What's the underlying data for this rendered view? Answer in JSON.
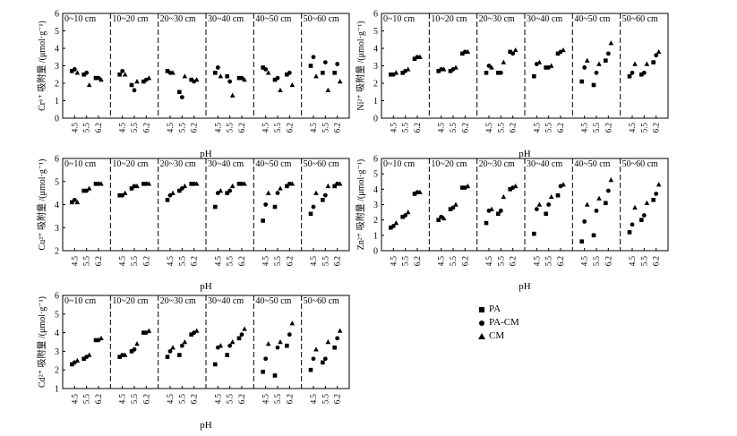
{
  "chart_data": [
    {
      "type": "scatter",
      "ylabel": "Cr⁶⁺ 吸附量 /(μmol·g⁻¹)",
      "xlabel": "pH",
      "ylim": [
        0,
        6
      ],
      "yticks": [
        "0",
        "1",
        "2",
        "3",
        "4",
        "5",
        "6"
      ],
      "x_ticks": [
        "4.5",
        "5.5",
        "6.2"
      ],
      "depths": [
        "0~10 cm",
        "10~20 cm",
        "20~30 cm",
        "30~40 cm",
        "40~50 cm",
        "50~60 cm"
      ],
      "series": [
        {
          "name": "PA",
          "values": [
            [
              2.7,
              2.5,
              2.3
            ],
            [
              2.5,
              1.9,
              2.1
            ],
            [
              2.7,
              1.5,
              2.2
            ],
            [
              2.6,
              2.4,
              2.3
            ],
            [
              2.9,
              2.2,
              2.5
            ],
            [
              3.0,
              2.6,
              2.6
            ]
          ]
        },
        {
          "name": "PA-CM",
          "values": [
            [
              2.8,
              2.6,
              2.3
            ],
            [
              2.7,
              1.6,
              2.2
            ],
            [
              2.6,
              1.2,
              2.1
            ],
            [
              2.9,
              2.1,
              2.3
            ],
            [
              2.8,
              2.3,
              2.6
            ],
            [
              3.5,
              3.2,
              3.1
            ]
          ]
        },
        {
          "name": "CM",
          "values": [
            [
              2.6,
              1.9,
              2.2
            ],
            [
              2.5,
              2.1,
              2.3
            ],
            [
              2.6,
              2.4,
              2.2
            ],
            [
              2.4,
              1.3,
              2.2
            ],
            [
              2.6,
              1.6,
              1.9
            ],
            [
              2.4,
              1.6,
              2.1
            ]
          ]
        }
      ]
    },
    {
      "type": "scatter",
      "ylabel": "Ni²⁺ 吸附量 /(μmol·g⁻¹)",
      "xlabel": "pH",
      "ylim": [
        0,
        6
      ],
      "yticks": [
        "0",
        "1",
        "2",
        "3",
        "4",
        "5",
        "6"
      ],
      "x_ticks": [
        "4.5",
        "5.5",
        "6.2"
      ],
      "depths": [
        "0~10 cm",
        "10~20 cm",
        "20~30 cm",
        "30~40 cm",
        "40~50 cm",
        "50~60 cm"
      ],
      "series": [
        {
          "name": "PA",
          "values": [
            [
              2.5,
              2.6,
              3.4
            ],
            [
              2.7,
              2.7,
              3.7
            ],
            [
              2.6,
              2.6,
              3.8
            ],
            [
              2.4,
              2.9,
              3.7
            ],
            [
              2.1,
              1.9,
              3.3
            ],
            [
              2.4,
              2.5,
              3.2
            ]
          ]
        },
        {
          "name": "PA-CM",
          "values": [
            [
              2.5,
              2.7,
              3.5
            ],
            [
              2.8,
              2.8,
              3.8
            ],
            [
              3.0,
              2.6,
              3.7
            ],
            [
              3.1,
              2.9,
              3.8
            ],
            [
              2.9,
              2.6,
              3.7
            ],
            [
              2.6,
              2.6,
              3.6
            ]
          ]
        },
        {
          "name": "CM",
          "values": [
            [
              2.6,
              2.8,
              3.5
            ],
            [
              2.8,
              2.9,
              3.8
            ],
            [
              2.9,
              3.2,
              3.9
            ],
            [
              3.2,
              3.0,
              3.9
            ],
            [
              3.3,
              3.1,
              4.3
            ],
            [
              3.1,
              3.1,
              3.8
            ]
          ]
        }
      ]
    },
    {
      "type": "scatter",
      "ylabel": "Cu²⁺ 吸附量 /(μmol·g⁻¹)",
      "xlabel": "pH",
      "ylim": [
        2,
        6
      ],
      "yticks": [
        "2",
        "3",
        "4",
        "5",
        "6"
      ],
      "x_ticks": [
        "4.5",
        "5.5",
        "6.2"
      ],
      "depths": [
        "0~10 cm",
        "10~20 cm",
        "20~30 cm",
        "30~40 cm",
        "40~50 cm",
        "50~60 cm"
      ],
      "series": [
        {
          "name": "PA",
          "values": [
            [
              4.1,
              4.6,
              4.9
            ],
            [
              4.4,
              4.7,
              4.9
            ],
            [
              4.2,
              4.6,
              4.9
            ],
            [
              3.9,
              4.5,
              4.9
            ],
            [
              3.3,
              3.9,
              4.8
            ],
            [
              3.6,
              4.2,
              4.8
            ]
          ]
        },
        {
          "name": "PA-CM",
          "values": [
            [
              4.2,
              4.6,
              4.9
            ],
            [
              4.4,
              4.8,
              4.9
            ],
            [
              4.4,
              4.7,
              4.9
            ],
            [
              4.5,
              4.6,
              4.9
            ],
            [
              4.0,
              4.5,
              4.9
            ],
            [
              3.9,
              4.4,
              4.9
            ]
          ]
        },
        {
          "name": "CM",
          "values": [
            [
              4.1,
              4.7,
              4.9
            ],
            [
              4.5,
              4.8,
              4.9
            ],
            [
              4.5,
              4.8,
              4.9
            ],
            [
              4.6,
              4.8,
              4.9
            ],
            [
              4.5,
              4.7,
              4.9
            ],
            [
              4.5,
              4.8,
              4.9
            ]
          ]
        }
      ]
    },
    {
      "type": "scatter",
      "ylabel": "Zn²⁺ 吸附量 /(μmol·g⁻¹)",
      "xlabel": "pH",
      "ylim": [
        0,
        6
      ],
      "yticks": [
        "0",
        "1",
        "2",
        "3",
        "4",
        "5",
        "6"
      ],
      "x_ticks": [
        "4.5",
        "5.5",
        "6.2"
      ],
      "depths": [
        "0~10 cm",
        "10~20 cm",
        "20~30 cm",
        "30~40 cm",
        "40~50 cm",
        "50~60 cm"
      ],
      "series": [
        {
          "name": "PA",
          "values": [
            [
              1.5,
              2.2,
              3.7
            ],
            [
              2.0,
              2.7,
              4.1
            ],
            [
              1.8,
              2.4,
              4.0
            ],
            [
              1.1,
              2.4,
              3.6
            ],
            [
              0.6,
              1.0,
              3.1
            ],
            [
              1.2,
              2.0,
              3.3
            ]
          ]
        },
        {
          "name": "PA-CM",
          "values": [
            [
              1.6,
              2.3,
              3.8
            ],
            [
              2.2,
              2.8,
              4.1
            ],
            [
              2.6,
              2.6,
              4.1
            ],
            [
              2.7,
              3.0,
              4.2
            ],
            [
              1.9,
              2.6,
              3.9
            ],
            [
              1.7,
              2.3,
              3.7
            ]
          ]
        },
        {
          "name": "CM",
          "values": [
            [
              1.8,
              2.5,
              3.8
            ],
            [
              2.1,
              3.0,
              4.2
            ],
            [
              2.7,
              3.5,
              4.2
            ],
            [
              3.0,
              3.5,
              4.3
            ],
            [
              3.0,
              3.4,
              4.6
            ],
            [
              2.8,
              3.1,
              4.3
            ]
          ]
        }
      ]
    },
    {
      "type": "scatter",
      "ylabel": "Cd²⁺ 吸附量 /(μmol·g⁻¹)",
      "xlabel": "pH",
      "ylim": [
        1,
        6
      ],
      "yticks": [
        "1",
        "2",
        "3",
        "4",
        "5",
        "6"
      ],
      "x_ticks": [
        "4.5",
        "5.5",
        "6.2"
      ],
      "depths": [
        "0~10 cm",
        "10~20 cm",
        "20~30 cm",
        "30~40 cm",
        "40~50 cm",
        "50~60 cm"
      ],
      "series": [
        {
          "name": "PA",
          "values": [
            [
              2.3,
              2.6,
              3.6
            ],
            [
              2.7,
              3.0,
              4.0
            ],
            [
              2.7,
              2.8,
              3.9
            ],
            [
              2.3,
              2.8,
              3.7
            ],
            [
              1.9,
              1.7,
              3.3
            ],
            [
              2.0,
              2.4,
              3.2
            ]
          ]
        },
        {
          "name": "PA-CM",
          "values": [
            [
              2.4,
              2.7,
              3.6
            ],
            [
              2.8,
              3.1,
              4.0
            ],
            [
              3.0,
              3.3,
              4.0
            ],
            [
              3.2,
              3.3,
              3.9
            ],
            [
              2.6,
              3.2,
              3.9
            ],
            [
              2.6,
              2.6,
              3.7
            ]
          ]
        },
        {
          "name": "CM",
          "values": [
            [
              2.5,
              2.8,
              3.7
            ],
            [
              2.8,
              3.4,
              4.1
            ],
            [
              3.2,
              3.5,
              4.1
            ],
            [
              3.3,
              3.5,
              4.2
            ],
            [
              3.4,
              3.5,
              4.5
            ],
            [
              3.1,
              3.5,
              4.1
            ]
          ]
        }
      ]
    }
  ],
  "legend": [
    {
      "name": "PA",
      "symbol": "square"
    },
    {
      "name": "PA-CM",
      "symbol": "circle"
    },
    {
      "name": "CM",
      "symbol": "triangle"
    }
  ]
}
